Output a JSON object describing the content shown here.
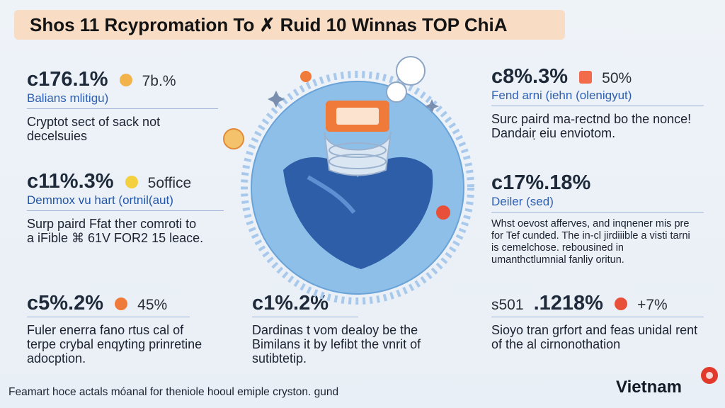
{
  "title": "Shos 11 Rcypromation To ✗ Ruid 10 Winnas TOP ChiA",
  "blocks": [
    {
      "stat": "c176.1%",
      "extra": "7b.%",
      "subtitle": "Balians mlitigu)",
      "body": "Cryptot sect of sack not decelsuies"
    },
    {
      "stat": "c11%.3%",
      "extra": "5office",
      "subtitle": "Demmox vu hart (ortnil(aut)",
      "body": "Surp paird Ffat ther comroti to a iFible ⌘ 61V FOR2 15 leace."
    },
    {
      "stat": "c5%.2%",
      "extra": "45%",
      "body": "Fuler enerra fano rtus cal of terpe crybal enqyting prinretine adocption."
    },
    {
      "stat": "c1%.2%",
      "body": "Dardinas t vom dealoy be the Bimilans it by lefibt the vnrit of sutibtetip."
    },
    {
      "stat": "c8%.3%",
      "extra": "50%",
      "subtitle": "Fend arni (iehn (olenigyut)",
      "body": "Surc paird ma-rectnd bo the nonce! Dandaiṛ eiu enviotom."
    },
    {
      "stat": "c17%.18%",
      "subtitle": "Deiler (sed)",
      "body": "Whst oevost afferves, and inqnener mis pre for Tef cunded. The in-cl jirdiiible a visti tarni is cemelchose. rebousined in umanthctlumnial fanliy oritun."
    },
    {
      "stat_prefix": "s501",
      "stat": ".1218%",
      "extra": "+7%",
      "body": "Sioyo tran grfort and feas unidal rent of the al cirnonothation"
    }
  ],
  "footer": "Feamart hoce actals móanal for theniole hooul emiple cryston. gund",
  "brand": "Vietnam",
  "colors": {
    "title_bg": "#f8dcc4",
    "subtitle": "#2f5fb0",
    "globe": "#8ebfe8",
    "mountain": "#2f5ea8",
    "accent_orange": "#f07a3a",
    "brand_badge": "#e13a2a"
  }
}
